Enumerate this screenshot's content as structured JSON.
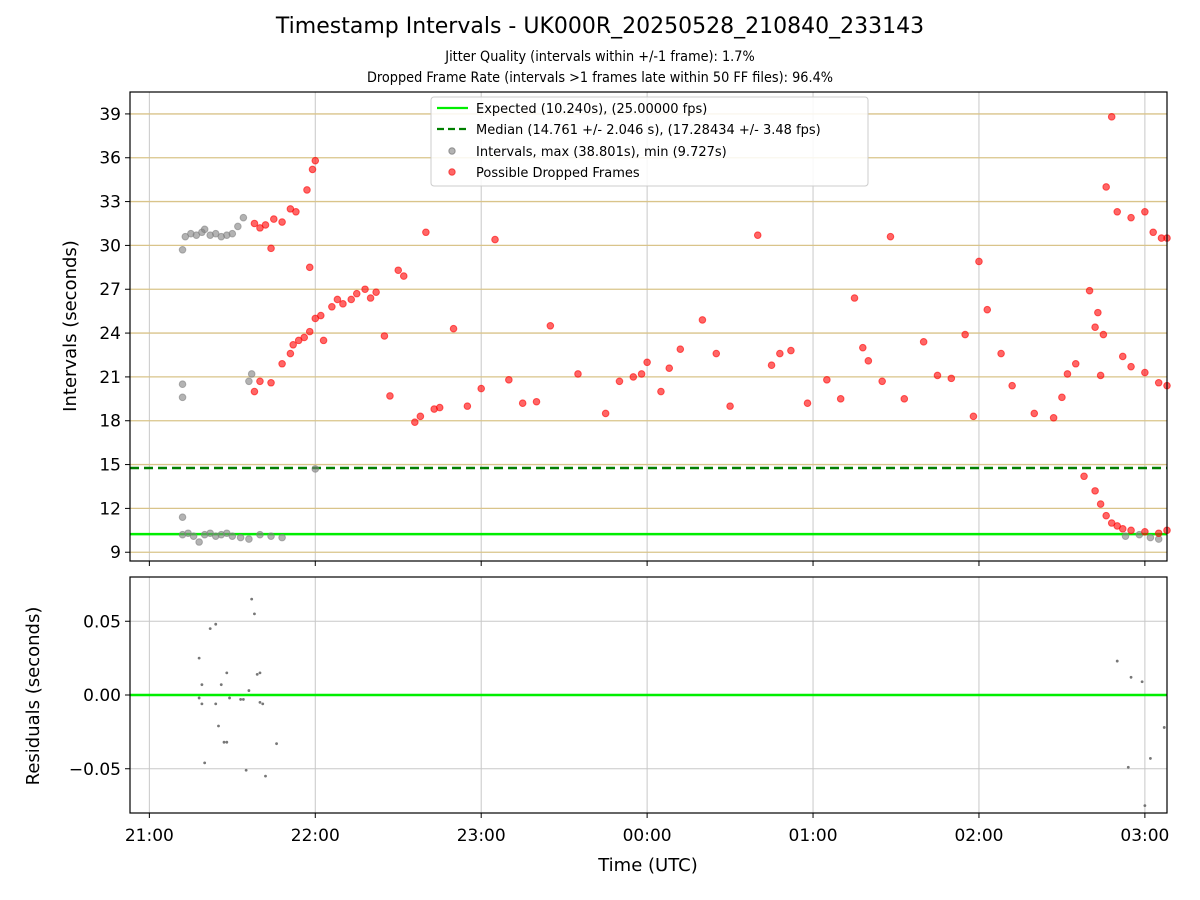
{
  "title": "Timestamp Intervals - UK000R_20250528_210840_233143",
  "subtitle1": "Jitter Quality (intervals within +/-1 frame): 1.7%",
  "subtitle2": "Dropped Frame Rate (intervals >1 frames late within 50 FF files): 96.4%",
  "colors": {
    "expected": "#00ee00",
    "median": "#007f00",
    "intervals": "#808080",
    "dropped": "#ff0000",
    "hgrid_top": "#d9c48a",
    "grid": "#c8c8c8"
  },
  "chart_data": [
    {
      "type": "scatter",
      "ylabel": "Intervals (seconds)",
      "xlabel": "",
      "xlim": [
        "20:53",
        "03:08"
      ],
      "ylim": [
        8.4,
        40.5
      ],
      "grid": true,
      "legend_position": "top-center",
      "y_ticks": [
        "9",
        "12",
        "15",
        "18",
        "21",
        "24",
        "27",
        "30",
        "33",
        "36",
        "39"
      ],
      "series": [
        {
          "name": "Expected (10.240s), (25.00000 fps)",
          "style": "line",
          "y": 10.24
        },
        {
          "name": "Median (14.761 +/- 2.046 s), (17.28434 +/- 3.48 fps)",
          "style": "dashed-line",
          "y": 14.761
        },
        {
          "name": "Intervals, max (38.801s), min (9.727s)",
          "style": "points",
          "points": [
            [
              "21:12",
              19.6
            ],
            [
              "21:12",
              20.5
            ],
            [
              "21:12",
              29.7
            ],
            [
              "21:13",
              30.6
            ],
            [
              "21:15",
              30.8
            ],
            [
              "21:17",
              30.7
            ],
            [
              "21:19",
              30.9
            ],
            [
              "21:20",
              31.1
            ],
            [
              "21:22",
              30.7
            ],
            [
              "21:24",
              30.8
            ],
            [
              "21:26",
              30.6
            ],
            [
              "21:28",
              30.7
            ],
            [
              "21:30",
              30.8
            ],
            [
              "21:32",
              31.3
            ],
            [
              "21:34",
              31.9
            ],
            [
              "21:36",
              20.7
            ],
            [
              "21:37",
              21.2
            ],
            [
              "21:12",
              11.4
            ],
            [
              "21:12",
              10.2
            ],
            [
              "21:14",
              10.3
            ],
            [
              "21:16",
              10.1
            ],
            [
              "21:18",
              9.7
            ],
            [
              "21:20",
              10.2
            ],
            [
              "21:22",
              10.3
            ],
            [
              "21:24",
              10.1
            ],
            [
              "21:26",
              10.2
            ],
            [
              "21:28",
              10.3
            ],
            [
              "21:30",
              10.1
            ],
            [
              "21:33",
              10.0
            ],
            [
              "21:36",
              9.9
            ],
            [
              "21:40",
              10.2
            ],
            [
              "21:44",
              10.1
            ],
            [
              "21:48",
              10.0
            ],
            [
              "22:00",
              14.7
            ],
            [
              "02:53",
              10.1
            ],
            [
              "02:58",
              10.2
            ],
            [
              "03:02",
              10.0
            ],
            [
              "03:05",
              9.9
            ]
          ]
        },
        {
          "name": "Possible Dropped Frames",
          "style": "points",
          "points": [
            [
              "21:38",
              31.5
            ],
            [
              "21:40",
              31.2
            ],
            [
              "21:42",
              31.4
            ],
            [
              "21:45",
              31.8
            ],
            [
              "21:48",
              31.6
            ],
            [
              "21:51",
              32.5
            ],
            [
              "21:53",
              32.3
            ],
            [
              "21:44",
              29.8
            ],
            [
              "21:57",
              33.8
            ],
            [
              "21:59",
              35.2
            ],
            [
              "22:00",
              35.8
            ],
            [
              "21:58",
              28.5
            ],
            [
              "21:38",
              20.0
            ],
            [
              "21:40",
              20.7
            ],
            [
              "21:44",
              20.6
            ],
            [
              "21:48",
              21.9
            ],
            [
              "21:51",
              22.6
            ],
            [
              "21:52",
              23.2
            ],
            [
              "21:54",
              23.5
            ],
            [
              "21:56",
              23.7
            ],
            [
              "21:58",
              24.1
            ],
            [
              "22:00",
              25.0
            ],
            [
              "22:02",
              25.2
            ],
            [
              "22:03",
              23.5
            ],
            [
              "22:06",
              25.8
            ],
            [
              "22:08",
              26.3
            ],
            [
              "22:10",
              26.0
            ],
            [
              "22:13",
              26.3
            ],
            [
              "22:15",
              26.7
            ],
            [
              "22:18",
              27.0
            ],
            [
              "22:20",
              26.4
            ],
            [
              "22:22",
              26.8
            ],
            [
              "22:25",
              23.8
            ],
            [
              "22:27",
              19.7
            ],
            [
              "22:30",
              28.3
            ],
            [
              "22:32",
              27.9
            ],
            [
              "22:36",
              17.9
            ],
            [
              "22:38",
              18.3
            ],
            [
              "22:40",
              30.9
            ],
            [
              "22:43",
              18.8
            ],
            [
              "22:45",
              18.9
            ],
            [
              "22:50",
              24.3
            ],
            [
              "22:55",
              19.0
            ],
            [
              "23:00",
              20.2
            ],
            [
              "23:05",
              30.4
            ],
            [
              "23:10",
              20.8
            ],
            [
              "23:15",
              19.2
            ],
            [
              "23:20",
              19.3
            ],
            [
              "23:25",
              24.5
            ],
            [
              "23:35",
              21.2
            ],
            [
              "23:45",
              18.5
            ],
            [
              "23:50",
              20.7
            ],
            [
              "23:55",
              21.0
            ],
            [
              "23:58",
              21.2
            ],
            [
              "00:00",
              22.0
            ],
            [
              "00:05",
              20.0
            ],
            [
              "00:08",
              21.6
            ],
            [
              "00:12",
              22.9
            ],
            [
              "00:20",
              24.9
            ],
            [
              "00:25",
              22.6
            ],
            [
              "00:30",
              19.0
            ],
            [
              "00:40",
              30.7
            ],
            [
              "00:45",
              21.8
            ],
            [
              "00:48",
              22.6
            ],
            [
              "00:52",
              22.8
            ],
            [
              "00:58",
              19.2
            ],
            [
              "01:05",
              20.8
            ],
            [
              "01:10",
              19.5
            ],
            [
              "01:15",
              26.4
            ],
            [
              "01:18",
              23.0
            ],
            [
              "01:20",
              22.1
            ],
            [
              "01:25",
              20.7
            ],
            [
              "01:28",
              30.6
            ],
            [
              "01:33",
              19.5
            ],
            [
              "01:40",
              23.4
            ],
            [
              "01:45",
              21.1
            ],
            [
              "01:50",
              20.9
            ],
            [
              "01:55",
              23.9
            ],
            [
              "01:58",
              18.3
            ],
            [
              "02:00",
              28.9
            ],
            [
              "02:03",
              25.6
            ],
            [
              "02:08",
              22.6
            ],
            [
              "02:12",
              20.4
            ],
            [
              "02:20",
              18.5
            ],
            [
              "02:27",
              18.2
            ],
            [
              "02:30",
              19.6
            ],
            [
              "02:32",
              21.2
            ],
            [
              "02:35",
              21.9
            ],
            [
              "02:40",
              26.9
            ],
            [
              "02:42",
              24.4
            ],
            [
              "02:43",
              25.4
            ],
            [
              "02:45",
              23.9
            ],
            [
              "02:48",
              38.8
            ],
            [
              "02:44",
              21.1
            ],
            [
              "02:46",
              34.0
            ],
            [
              "02:50",
              32.3
            ],
            [
              "02:55",
              31.9
            ],
            [
              "03:00",
              32.3
            ],
            [
              "03:03",
              30.9
            ],
            [
              "03:06",
              30.5
            ],
            [
              "03:08",
              30.5
            ],
            [
              "02:52",
              22.4
            ],
            [
              "02:55",
              21.7
            ],
            [
              "03:00",
              21.3
            ],
            [
              "03:05",
              20.6
            ],
            [
              "03:08",
              20.4
            ],
            [
              "02:38",
              14.2
            ],
            [
              "02:42",
              13.2
            ],
            [
              "02:44",
              12.3
            ],
            [
              "02:46",
              11.5
            ],
            [
              "02:48",
              11.0
            ],
            [
              "02:50",
              10.8
            ],
            [
              "02:52",
              10.6
            ],
            [
              "02:55",
              10.5
            ],
            [
              "03:00",
              10.4
            ],
            [
              "03:05",
              10.3
            ],
            [
              "03:08",
              10.5
            ]
          ]
        }
      ]
    },
    {
      "type": "scatter",
      "ylabel": "Residuals (seconds)",
      "xlabel": "Time (UTC)",
      "xlim": [
        "20:53",
        "03:08"
      ],
      "ylim": [
        -0.08,
        0.08
      ],
      "grid": true,
      "x_ticks": [
        "21:00",
        "22:00",
        "23:00",
        "00:00",
        "01:00",
        "02:00",
        "03:00"
      ],
      "y_ticks": [
        "0.05",
        "0.00",
        "−0.05"
      ],
      "zero_line": 0.0,
      "points": [
        [
          "21:18",
          0.025
        ],
        [
          "21:19",
          0.007
        ],
        [
          "21:18",
          -0.002
        ],
        [
          "21:19",
          -0.006
        ],
        [
          "21:20",
          -0.046
        ],
        [
          "21:22",
          0.045
        ],
        [
          "21:24",
          0.048
        ],
        [
          "21:24",
          -0.006
        ],
        [
          "21:25",
          -0.021
        ],
        [
          "21:26",
          0.007
        ],
        [
          "21:27",
          -0.032
        ],
        [
          "21:28",
          -0.032
        ],
        [
          "21:28",
          0.015
        ],
        [
          "21:29",
          -0.002
        ],
        [
          "21:33",
          -0.003
        ],
        [
          "21:34",
          -0.003
        ],
        [
          "21:35",
          -0.051
        ],
        [
          "21:36",
          0.003
        ],
        [
          "21:37",
          0.065
        ],
        [
          "21:38",
          0.055
        ],
        [
          "21:39",
          0.014
        ],
        [
          "21:40",
          0.015
        ],
        [
          "21:40",
          -0.005
        ],
        [
          "21:41",
          -0.006
        ],
        [
          "21:42",
          -0.055
        ],
        [
          "21:46",
          -0.033
        ],
        [
          "02:50",
          0.023
        ],
        [
          "02:55",
          0.012
        ],
        [
          "02:54",
          -0.049
        ],
        [
          "02:59",
          0.009
        ],
        [
          "03:00",
          -0.075
        ],
        [
          "03:02",
          -0.043
        ],
        [
          "03:07",
          -0.022
        ]
      ]
    }
  ]
}
